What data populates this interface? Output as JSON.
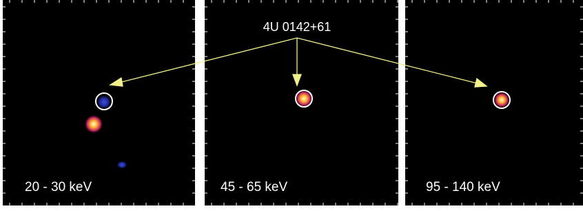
{
  "annotation": "4U 0142+61",
  "panels": [
    {
      "label": "20 - 30 keV"
    },
    {
      "label": "45 - 65 keV"
    },
    {
      "label": "95 - 140 keV"
    }
  ]
}
